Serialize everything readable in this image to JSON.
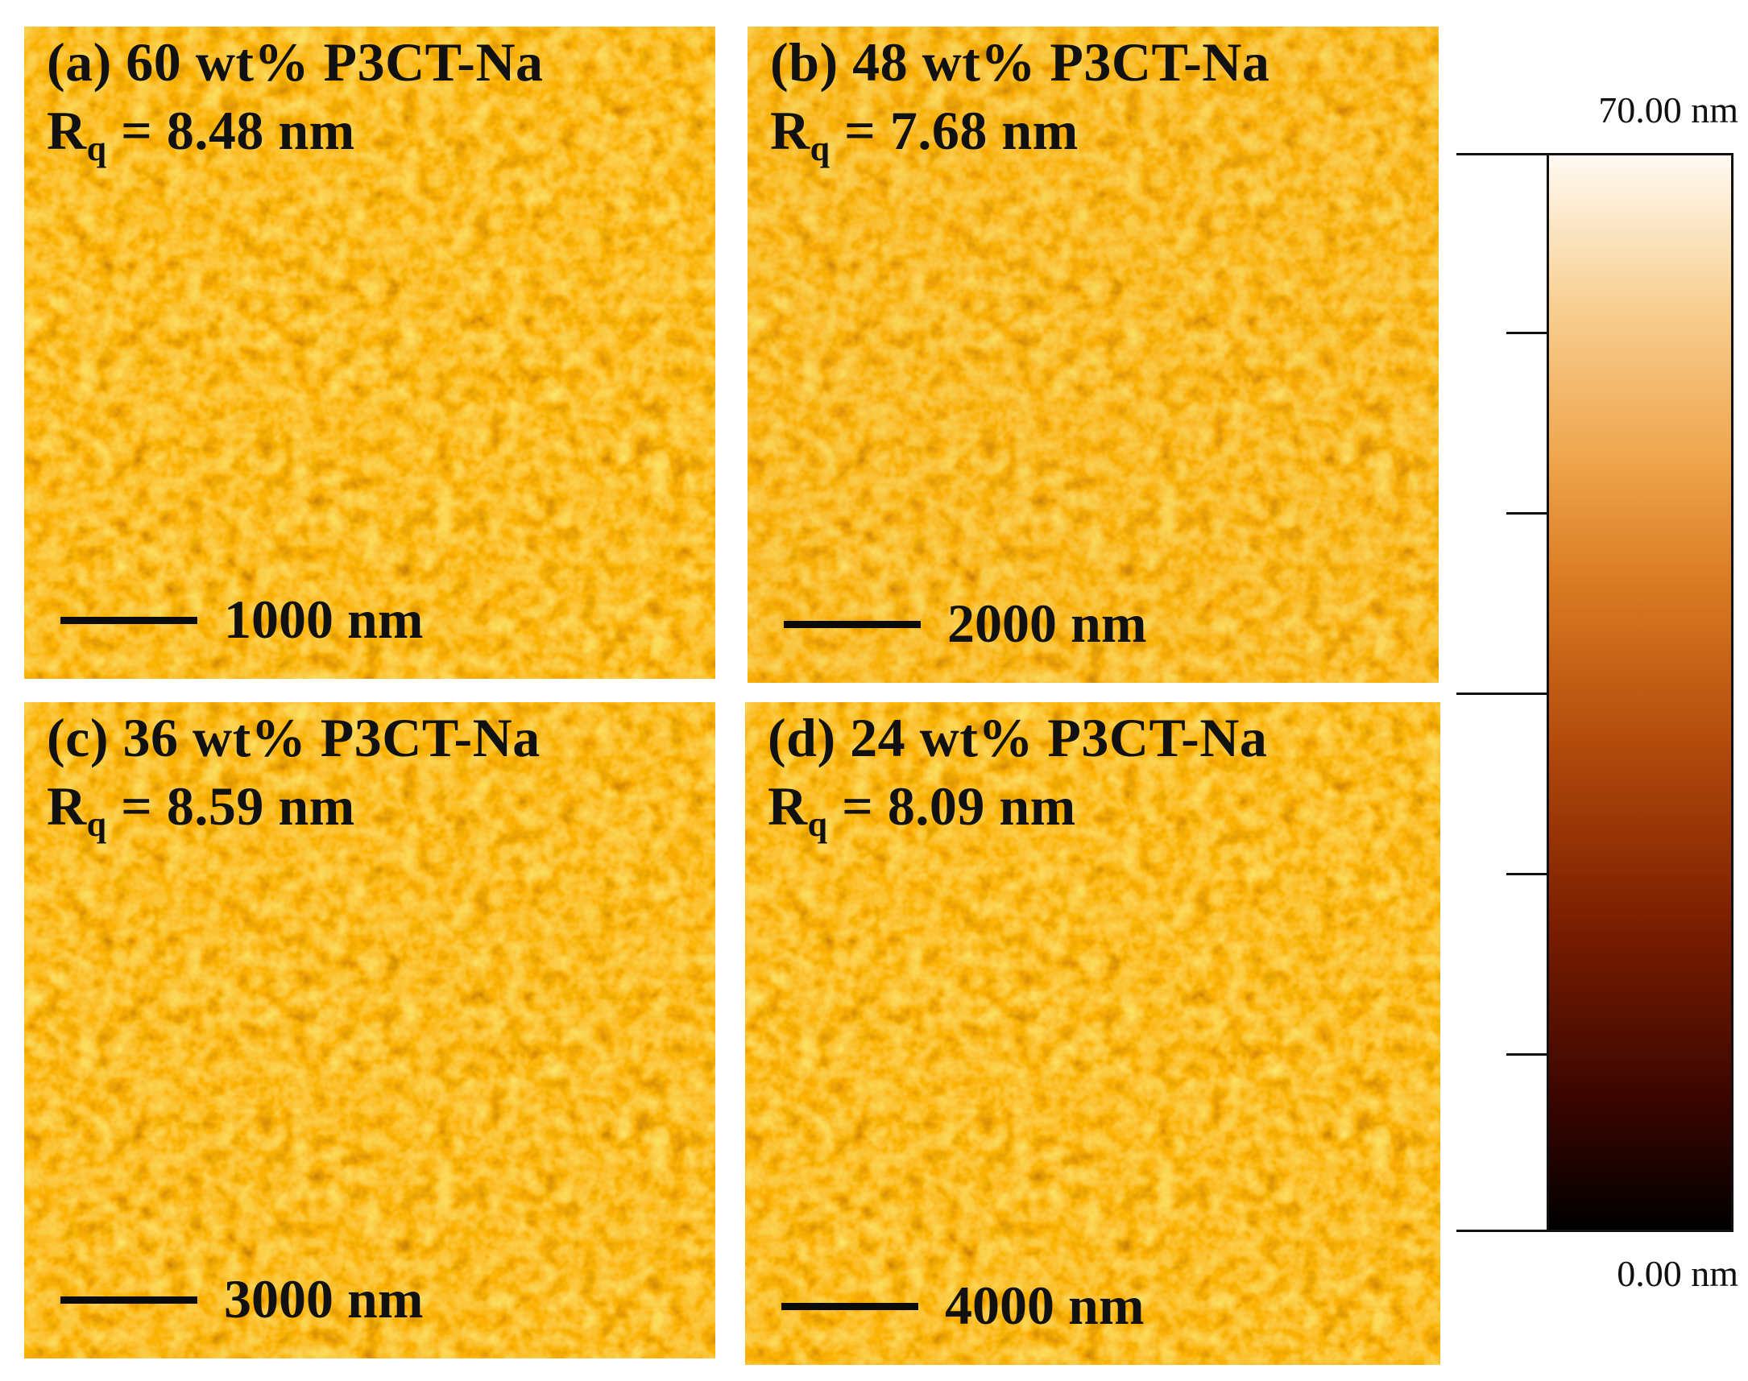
{
  "panels": [
    {
      "id": "a",
      "title": "(a) 60 wt% P3CT-Na",
      "rq_prefix": "R",
      "rq_sub": "q",
      "rq_value": " = 8.48 nm",
      "scale_label": "1000 nm"
    },
    {
      "id": "b",
      "title": "(b) 48 wt% P3CT-Na",
      "rq_prefix": "R",
      "rq_sub": "q",
      "rq_value": " = 7.68 nm",
      "scale_label": "2000 nm"
    },
    {
      "id": "c",
      "title": "(c) 36 wt% P3CT-Na",
      "rq_prefix": "R",
      "rq_sub": "q",
      "rq_value": " = 8.59 nm",
      "scale_label": "3000 nm"
    },
    {
      "id": "d",
      "title": "(d) 24 wt% P3CT-Na",
      "rq_prefix": "R",
      "rq_sub": "q",
      "rq_value": " = 8.09 nm",
      "scale_label": "4000 nm"
    }
  ],
  "colorbar": {
    "max_label": "70.00 nm",
    "min_label": "0.00 nm",
    "colors": [
      "#000000",
      "#7a1d00",
      "#d97a22",
      "#f8cf92",
      "#fffaf2"
    ]
  }
}
